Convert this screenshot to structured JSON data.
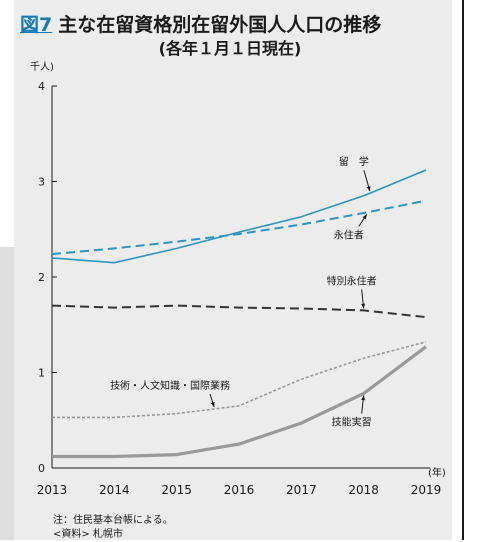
{
  "header": {
    "figure_label": "図7",
    "title": "主な在留資格別在留外国人人口の推移",
    "subtitle": "(各年１月１日現在)"
  },
  "notes": {
    "note": "注：住民基本台帳による。",
    "source": "<資料> 札幌市"
  },
  "colors": {
    "blue": "#2a96c4",
    "dark": "#333333",
    "gray": "#999999",
    "background": "#ececec"
  },
  "chart_data": {
    "type": "line",
    "title": "主な在留資格別在留外国人人口の推移",
    "subtitle": "(各年１月１日現在)",
    "ylabel": "千人)",
    "xlabel": "(年)",
    "x": [
      2013,
      2014,
      2015,
      2016,
      2017,
      2018,
      2019
    ],
    "x_tick_labels": [
      "2013",
      "2014",
      "2015",
      "2016",
      "2017",
      "2018",
      "2019"
    ],
    "ylim": [
      0,
      4
    ],
    "y_ticks": [
      0,
      1,
      2,
      3,
      4
    ],
    "y_tick_labels": [
      "0",
      "1",
      "2",
      "3",
      "4"
    ],
    "grid": false,
    "series": [
      {
        "name": "留　学",
        "values": [
          2.2,
          2.15,
          2.3,
          2.47,
          2.63,
          2.85,
          3.12
        ],
        "color": "#2a96c4",
        "style": "solid"
      },
      {
        "name": "永住者",
        "values": [
          2.24,
          2.3,
          2.37,
          2.45,
          2.55,
          2.67,
          2.8
        ],
        "color": "#2a96c4",
        "style": "dashed"
      },
      {
        "name": "特別永住者",
        "values": [
          1.7,
          1.68,
          1.7,
          1.68,
          1.67,
          1.65,
          1.58
        ],
        "color": "#333333",
        "style": "dashed"
      },
      {
        "name": "技術・人文知識・国際業務",
        "values": [
          0.53,
          0.53,
          0.57,
          0.65,
          0.93,
          1.15,
          1.32
        ],
        "color": "#999999",
        "style": "dotted"
      },
      {
        "name": "技能実習",
        "values": [
          0.12,
          0.12,
          0.14,
          0.25,
          0.47,
          0.78,
          1.27
        ],
        "color": "#999999",
        "style": "solid-thick"
      }
    ],
    "annotations": [
      {
        "label": "留　学",
        "series": 0,
        "x": 2018.1
      },
      {
        "label": "永住者",
        "series": 1,
        "x": 2018.05
      },
      {
        "label": "特別永住者",
        "series": 2,
        "x": 2018.0
      },
      {
        "label": "技術・人文知識・国際業務",
        "series": 3,
        "x": 2015.6
      },
      {
        "label": "技能実習",
        "series": 4,
        "x": 2018.0
      }
    ]
  }
}
